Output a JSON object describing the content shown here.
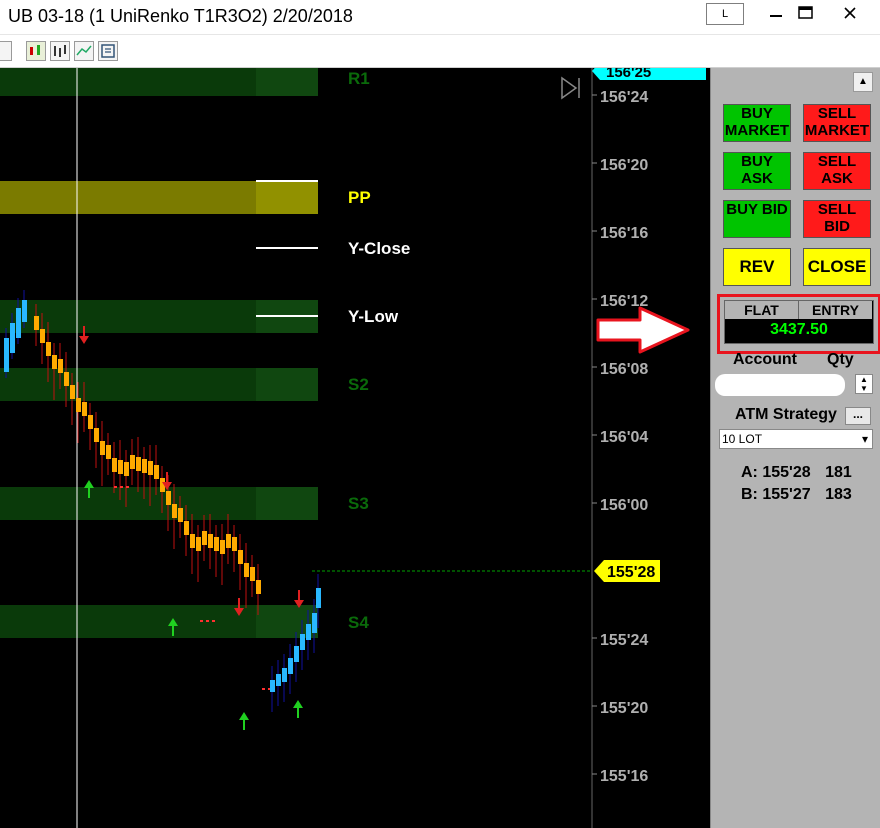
{
  "window": {
    "title": "UB 03-18 (1 UniRenko T1R3O2)  2/20/2018",
    "layout_button": "L",
    "minimize_icon": "minimize-icon",
    "maximize_icon": "maximize-icon",
    "close_icon": "close-icon"
  },
  "toolbar": {
    "icons": [
      "drawing-tool-icon",
      "candlestick-icon",
      "bar-chart-icon",
      "line-chart-icon",
      "properties-icon"
    ]
  },
  "chart": {
    "price_ticks": [
      "156'24",
      "156'20",
      "156'16",
      "156'12",
      "156'08",
      "156'04",
      "156'00",
      "155'24",
      "155'20",
      "155'16"
    ],
    "top_price_marker": "156'25",
    "current_price_marker": "155'28",
    "levels": [
      "R1",
      "PP",
      "Y-Close",
      "Y-Low",
      "S2",
      "S3",
      "S4"
    ],
    "colors": {
      "up_bar": "#29b8ff",
      "down_bar": "#ffaa00",
      "zone_green": "#0a3a0a",
      "zone_pp": "#7b7b00",
      "marker_cyan": "#00ffff",
      "marker_yellow": "#ffff00"
    }
  },
  "orders": {
    "buy_market": "BUY MARKET",
    "sell_market": "SELL MARKET",
    "buy_ask": "BUY ASK",
    "sell_ask": "SELL ASK",
    "buy_bid": "BUY BID",
    "sell_bid": "SELL BID",
    "rev": "REV",
    "close": "CLOSE"
  },
  "position": {
    "status": "FLAT",
    "entry_label": "ENTRY",
    "pnl": "3437.50"
  },
  "account": {
    "account_label": "Account",
    "qty_label": "Qty",
    "atm_label": "ATM Strategy",
    "atm_button": "...",
    "atm_value": "10 LOT"
  },
  "quotes": {
    "ask_label": "A:",
    "ask_price": "155'28",
    "ask_size": "181",
    "bid_label": "B:",
    "bid_price": "155'27",
    "bid_size": "183"
  }
}
